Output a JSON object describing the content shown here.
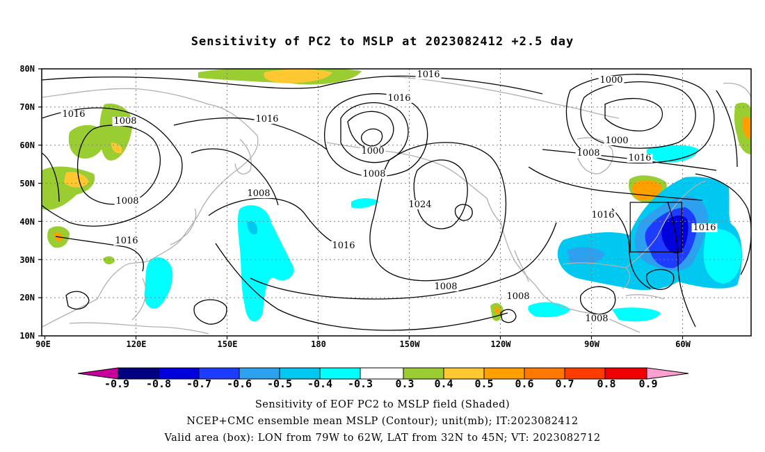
{
  "title": "Sensitivity of PC2 to MSLP at 2023082412 +2.5 day",
  "map": {
    "projection": "cylindrical equidistant",
    "lon_range": [
      "90E",
      "30W"
    ],
    "lat_range": [
      "10N",
      "80N"
    ],
    "lon_ticks": [
      "90E",
      "120E",
      "150E",
      "180",
      "150W",
      "120W",
      "90W",
      "60W"
    ],
    "lat_ticks": [
      "80N",
      "70N",
      "60N",
      "50N",
      "40N",
      "30N",
      "20N",
      "10N"
    ],
    "gridlines": "dotted",
    "contour_labels": [
      "1016",
      "1008",
      "1016",
      "1008",
      "1016",
      "1008",
      "1000",
      "1008",
      "1016",
      "1024",
      "1016",
      "1016",
      "1000",
      "1000",
      "1008",
      "1016",
      "1016",
      "1016",
      "1008",
      "1008",
      "1008"
    ],
    "valid_box": {
      "lon_from": "79W",
      "lon_to": "62W",
      "lat_from": "32N",
      "lat_to": "45N"
    },
    "colors": {
      "neg_0.9": "#000080",
      "neg_0.8": "#0000dc",
      "neg_0.7": "#1e3cff",
      "neg_0.6": "#2ea0f0",
      "neg_0.5": "#00c8f0",
      "neg_0.4": "#00ffff",
      "neutral": "#ffffff",
      "pos_0.3": "#9acd32",
      "pos_0.4": "#ffc832",
      "pos_0.5": "#ffa000",
      "pos_0.6": "#ff7800",
      "pos_0.7": "#ff3c00",
      "pos_0.8": "#f00000",
      "pos_0.9": "#ffa0d0",
      "under": "#c8009c",
      "land_outline": "#b0b0b0",
      "contour": "#000000"
    }
  },
  "colorbar": {
    "labels": [
      "-0.9",
      "-0.8",
      "-0.7",
      "-0.6",
      "-0.5",
      "-0.4",
      "-0.3",
      "0.3",
      "0.4",
      "0.5",
      "0.6",
      "0.7",
      "0.8",
      "0.9"
    ]
  },
  "captions": [
    "Sensitivity of EOF PC2 to MSLP field (Shaded)",
    "NCEP+CMC ensemble mean MSLP (Contour); unit(mb); IT:2023082412",
    "Valid area (box): LON from 79W to 62W, LAT from 32N to 45N; VT: 2023082712"
  ]
}
